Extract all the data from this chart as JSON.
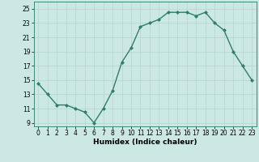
{
  "x": [
    0,
    1,
    2,
    3,
    4,
    5,
    6,
    7,
    8,
    9,
    10,
    11,
    12,
    13,
    14,
    15,
    16,
    17,
    18,
    19,
    20,
    21,
    22,
    23
  ],
  "y": [
    14.5,
    13.0,
    11.5,
    11.5,
    11.0,
    10.5,
    9.0,
    11.0,
    13.5,
    17.5,
    19.5,
    22.5,
    23.0,
    23.5,
    24.5,
    24.5,
    24.5,
    24.0,
    24.5,
    23.0,
    22.0,
    19.0,
    17.0,
    15.0
  ],
  "line_color": "#2e7d6e",
  "marker": "D",
  "marker_size": 2,
  "bg_color": "#cce8e4",
  "grid_color": "#b8d8d4",
  "xlabel": "Humidex (Indice chaleur)",
  "xlim": [
    -0.5,
    23.5
  ],
  "ylim": [
    8.5,
    26
  ],
  "yticks": [
    9,
    11,
    13,
    15,
    17,
    19,
    21,
    23,
    25
  ],
  "xticks": [
    0,
    1,
    2,
    3,
    4,
    5,
    6,
    7,
    8,
    9,
    10,
    11,
    12,
    13,
    14,
    15,
    16,
    17,
    18,
    19,
    20,
    21,
    22,
    23
  ],
  "xlabel_fontsize": 6.5,
  "tick_fontsize": 5.5,
  "line_width": 1.0
}
